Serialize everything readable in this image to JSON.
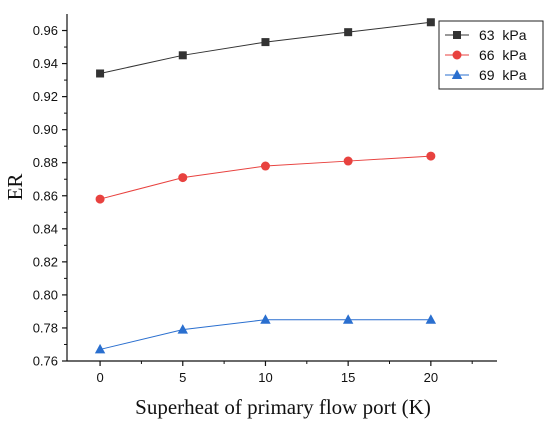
{
  "chart_data": {
    "type": "line",
    "xlabel": "Superheat of primary flow port (K)",
    "ylabel": "ER",
    "x": [
      0,
      5,
      10,
      15,
      20
    ],
    "xlim": [
      -2,
      24
    ],
    "ylim": [
      0.76,
      0.97
    ],
    "xticks": [
      0,
      5,
      10,
      15,
      20
    ],
    "yticks": [
      0.76,
      0.78,
      0.8,
      0.82,
      0.84,
      0.86,
      0.88,
      0.9,
      0.92,
      0.94,
      0.96
    ],
    "grid": false,
    "legend_position": "top-right",
    "series": [
      {
        "name": "63  kPa",
        "values": [
          0.934,
          0.945,
          0.953,
          0.959,
          0.965
        ],
        "color": "#333333",
        "marker": "square"
      },
      {
        "name": "66  kPa",
        "values": [
          0.858,
          0.871,
          0.878,
          0.881,
          0.884
        ],
        "color": "#e8423f",
        "marker": "circle"
      },
      {
        "name": "69  kPa",
        "values": [
          0.767,
          0.779,
          0.785,
          0.785,
          0.785
        ],
        "color": "#2a6fcf",
        "marker": "triangle"
      }
    ]
  }
}
